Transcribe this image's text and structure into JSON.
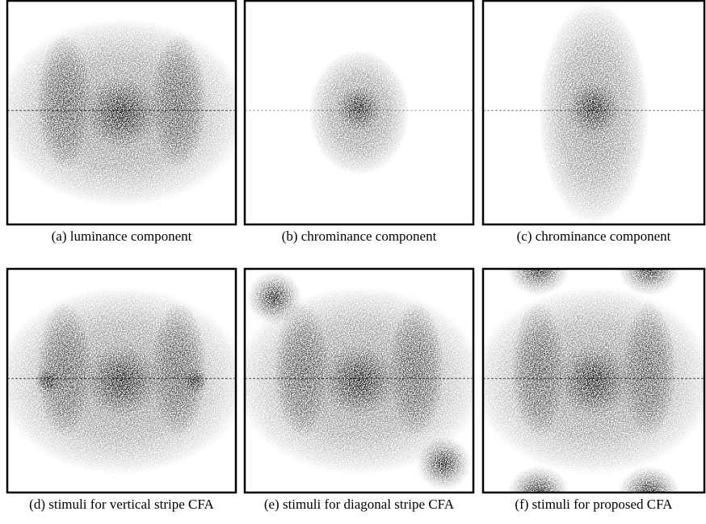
{
  "panels": [
    {
      "caption": "(a)  luminance component"
    },
    {
      "caption": "(b)  chrominance component"
    },
    {
      "caption": "(c)  chrominance component"
    },
    {
      "caption": "(d)  stimuli for vertical stripe CFA"
    },
    {
      "caption": "(e)  stimuli for diagonal stripe CFA"
    },
    {
      "caption": "(f)  stimuli for proposed CFA"
    }
  ]
}
